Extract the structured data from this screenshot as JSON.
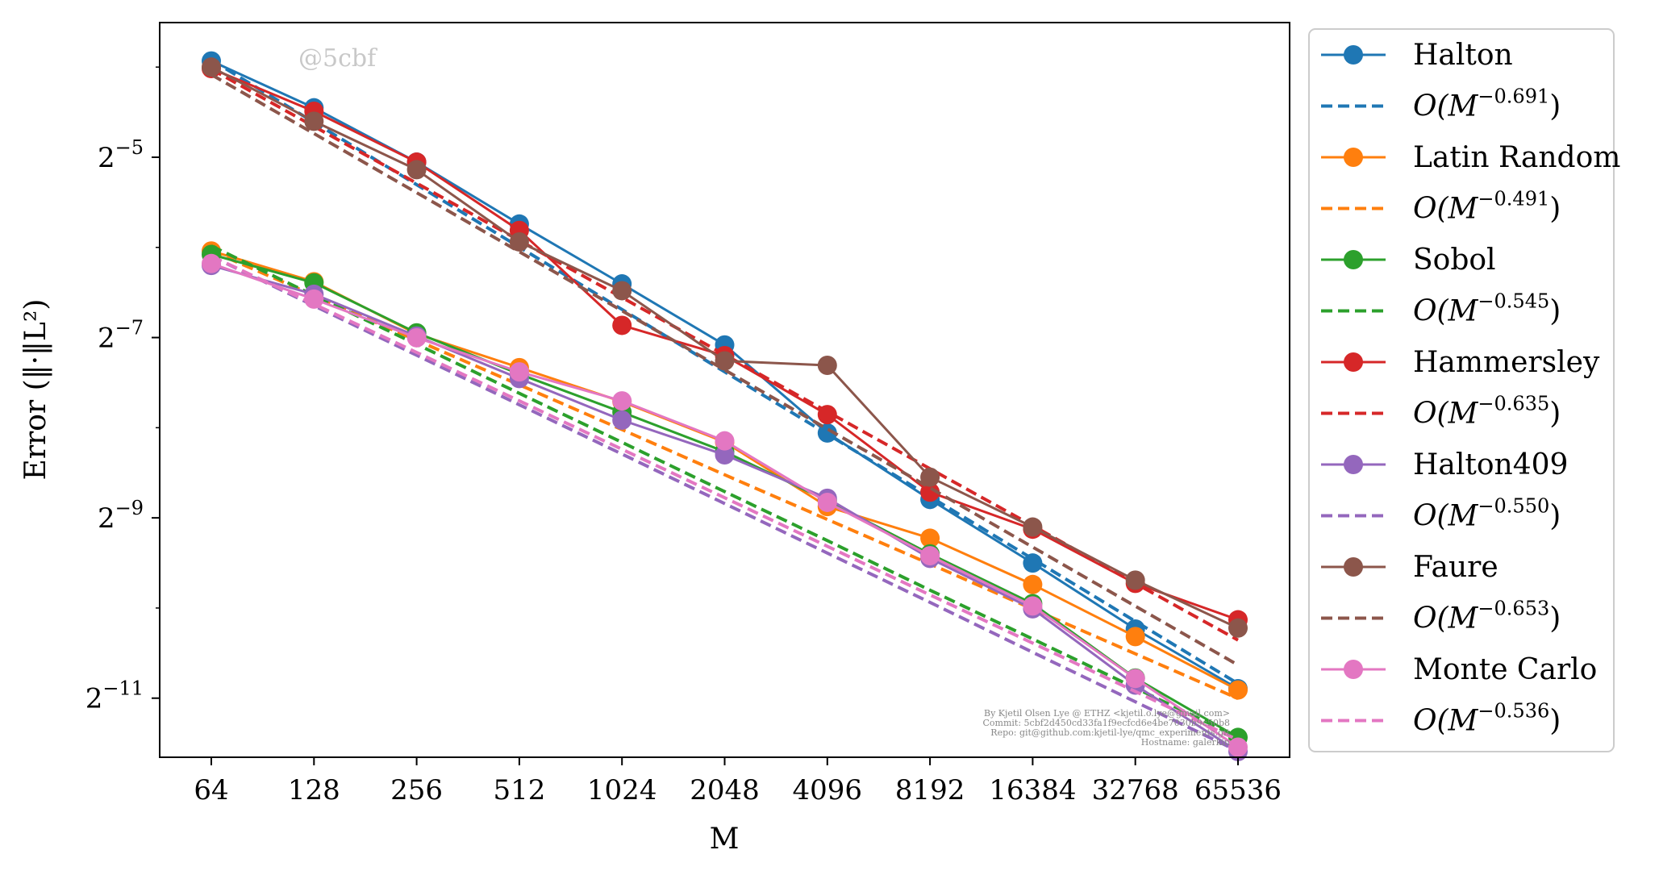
{
  "watermark": "@5cbf",
  "credits": [
    "By Kjetil Olsen Lye @ ETHZ <kjetil.o.lye@gmail.com>",
    "Commit: 5cbf2d450cd33fa1f9ecfcd6e4be7030b9c50b8",
    "Repo: git@github.com:kjetil-lye/qmc_experiments.git",
    "Hostname: galerkin"
  ],
  "chart_data": {
    "type": "line",
    "xlabel": "M",
    "ylabel": "Error (‖·‖L²)",
    "x_scale": "log2",
    "y_scale": "log2",
    "x": [
      64,
      128,
      256,
      512,
      1024,
      2048,
      4096,
      8192,
      16384,
      32768,
      65536
    ],
    "x_tick_labels": [
      "64",
      "128",
      "256",
      "512",
      "1024",
      "2048",
      "4096",
      "8192",
      "16384",
      "32768",
      "65536"
    ],
    "y_ticks": [
      {
        "value": 0.03125,
        "base": "2",
        "exp": "−5"
      },
      {
        "value": 0.0078125,
        "base": "2",
        "exp": "−7"
      },
      {
        "value": 0.001953125,
        "base": "2",
        "exp": "−9"
      },
      {
        "value": 0.00048828125,
        "base": "2",
        "exp": "−11"
      }
    ],
    "ylim": [
      0.00031,
      0.088
    ],
    "legend_position": "outside-right",
    "series": [
      {
        "name": "Halton",
        "fit_label": "O(M",
        "exponent": "−0.691",
        "color": "#1f77b4",
        "values": [
          0.0655,
          0.0457,
          0.0301,
          0.0187,
          0.0118,
          0.00738,
          0.00375,
          0.00225,
          0.00138,
          0.000831,
          0.000525
        ],
        "fit": [
          0.066,
          0.0409,
          0.0253,
          0.01566,
          0.0097,
          0.006,
          0.00372,
          0.0023,
          0.001425,
          0.000882,
          0.000546
        ]
      },
      {
        "name": "Latin Random",
        "fit_label": "O(M",
        "exponent": "−0.491",
        "color": "#ff7f0e",
        "values": [
          0.0152,
          0.012,
          0.00803,
          0.0062,
          0.00477,
          0.0035,
          0.00213,
          0.00167,
          0.00117,
          0.000784,
          0.00052
        ],
        "fit": [
          0.0152,
          0.0108,
          0.00765,
          0.00543,
          0.00385,
          0.00272,
          0.00193,
          0.00137,
          0.000969,
          0.000687,
          0.000487
        ]
      },
      {
        "name": "Sobol",
        "fit_label": "O(M",
        "exponent": "−0.545",
        "color": "#2ca02c",
        "values": [
          0.0148,
          0.0119,
          0.0081,
          0.0059,
          0.0044,
          0.00325,
          0.00223,
          0.00148,
          0.00101,
          0.00057,
          0.000361
        ],
        "fit": [
          0.0158,
          0.0108,
          0.00742,
          0.00509,
          0.00349,
          0.00239,
          0.00164,
          0.00112,
          0.00077,
          0.000528,
          0.000362
        ]
      },
      {
        "name": "Hammersley",
        "fit_label": "O(M",
        "exponent": "−0.635",
        "color": "#d62728",
        "values": [
          0.0618,
          0.0445,
          0.0301,
          0.0178,
          0.00858,
          0.0068,
          0.00432,
          0.00238,
          0.00179,
          0.00118,
          0.000892
        ],
        "fit": [
          0.0615,
          0.0396,
          0.0256,
          0.01648,
          0.01063,
          0.00685,
          0.00442,
          0.00285,
          0.00184,
          0.00118,
          0.000763
        ]
      },
      {
        "name": "Halton409",
        "fit_label": "O(M",
        "exponent": "−0.550",
        "color": "#9467bd",
        "values": [
          0.0136,
          0.0109,
          0.0079,
          0.0057,
          0.00414,
          0.00317,
          0.00227,
          0.00143,
          0.000971,
          0.00054,
          0.000324
        ],
        "fit": [
          0.0146,
          0.00998,
          0.00682,
          0.00466,
          0.00319,
          0.00218,
          0.00149,
          0.00102,
          0.000695,
          0.000475,
          0.000325
        ]
      },
      {
        "name": "Faure",
        "fit_label": "O(M",
        "exponent": "−0.653",
        "color": "#8c564b",
        "values": [
          0.0625,
          0.0412,
          0.0284,
          0.0163,
          0.0112,
          0.00653,
          0.00631,
          0.00267,
          0.00182,
          0.00121,
          0.000837
        ],
        "fit": [
          0.059,
          0.0375,
          0.0238,
          0.01511,
          0.0096,
          0.00609,
          0.00387,
          0.00246,
          0.00156,
          0.000991,
          0.00063
        ]
      },
      {
        "name": "Monte Carlo",
        "fit_label": "O(M",
        "exponent": "−0.536",
        "color": "#e377c2",
        "values": [
          0.0138,
          0.0105,
          0.0078,
          0.006,
          0.0048,
          0.00353,
          0.0022,
          0.00146,
          0.000992,
          0.000568,
          0.000335
        ],
        "fit": [
          0.0146,
          0.0101,
          0.00697,
          0.0048,
          0.00331,
          0.00228,
          0.00157,
          0.00108,
          0.000746,
          0.000514,
          0.000354
        ]
      }
    ]
  }
}
